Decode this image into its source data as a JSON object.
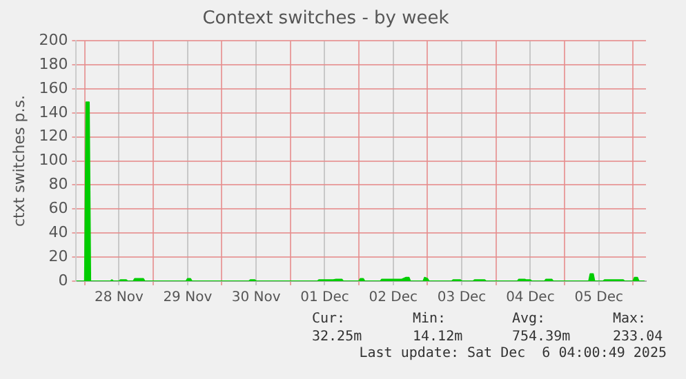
{
  "chart_data": {
    "type": "area",
    "title": "Context switches - by week",
    "ylabel": "ctxt switches p.s.",
    "x": [
      "2025-11-27T21:00",
      "2025-11-28T00:00",
      "2025-11-28T00:30",
      "2025-11-28T01:30",
      "2025-11-28T02:00",
      "2025-11-28T09:00",
      "2025-11-28T09:30",
      "2025-11-28T10:00",
      "2025-11-28T12:00",
      "2025-11-28T12:30",
      "2025-11-28T14:30",
      "2025-11-28T15:00",
      "2025-11-28T17:00",
      "2025-11-28T17:30",
      "2025-11-28T20:30",
      "2025-11-28T21:00",
      "2025-11-29T11:30",
      "2025-11-29T12:00",
      "2025-11-29T13:00",
      "2025-11-29T13:30",
      "2025-11-30T09:30",
      "2025-11-30T10:00",
      "2025-11-30T11:30",
      "2025-11-30T12:00",
      "2025-12-01T09:30",
      "2025-12-01T10:00",
      "2025-12-01T15:00",
      "2025-12-01T16:00",
      "2025-12-01T18:00",
      "2025-12-01T18:30",
      "2025-12-02T00:00",
      "2025-12-02T00:30",
      "2025-12-02T01:30",
      "2025-12-02T02:00",
      "2025-12-02T07:30",
      "2025-12-02T08:00",
      "2025-12-02T15:00",
      "2025-12-02T16:30",
      "2025-12-02T17:30",
      "2025-12-02T18:00",
      "2025-12-02T22:30",
      "2025-12-02T23:00",
      "2025-12-03T00:00",
      "2025-12-03T00:30",
      "2025-12-03T08:30",
      "2025-12-03T09:00",
      "2025-12-03T11:30",
      "2025-12-03T12:00",
      "2025-12-03T16:00",
      "2025-12-03T16:30",
      "2025-12-03T20:00",
      "2025-12-03T20:30",
      "2025-12-04T07:30",
      "2025-12-04T08:00",
      "2025-12-04T10:00",
      "2025-12-04T10:30",
      "2025-12-04T12:00",
      "2025-12-04T12:30",
      "2025-12-04T17:00",
      "2025-12-04T17:30",
      "2025-12-04T19:30",
      "2025-12-04T20:00",
      "2025-12-05T08:30",
      "2025-12-05T09:00",
      "2025-12-05T10:00",
      "2025-12-05T10:30",
      "2025-12-05T13:30",
      "2025-12-05T14:00",
      "2025-12-05T20:30",
      "2025-12-05T21:00",
      "2025-12-06T00:00",
      "2025-12-06T00:30",
      "2025-12-06T01:30",
      "2025-12-06T02:00",
      "2025-12-06T04:00"
    ],
    "series": [
      {
        "color": "#00cc00",
        "values": [
          0,
          0,
          149,
          149,
          0,
          0,
          1,
          0,
          0,
          1,
          1,
          0,
          0,
          2,
          2,
          0,
          0,
          2,
          2,
          0,
          0,
          1,
          1,
          0,
          0,
          1,
          1,
          1.5,
          1.5,
          0,
          0,
          2,
          2,
          0,
          0,
          1.5,
          1.5,
          3,
          3,
          0,
          0,
          3,
          2,
          0,
          0,
          1,
          1,
          0,
          0,
          1,
          1,
          0,
          0,
          1.5,
          1.5,
          1,
          1,
          0,
          0,
          1.5,
          1.5,
          0,
          0,
          6,
          6,
          0,
          0,
          1,
          1,
          0,
          0,
          3,
          3,
          0,
          0
        ]
      }
    ],
    "xlim": [
      "2025-11-27T21:00",
      "2025-12-06T04:30"
    ],
    "xticks": [
      {
        "value": "2025-11-28T00:00",
        "label": null
      },
      {
        "value": "2025-11-28T12:00",
        "label": "28 Nov"
      },
      {
        "value": "2025-11-29T00:00",
        "label": null
      },
      {
        "value": "2025-11-29T12:00",
        "label": "29 Nov"
      },
      {
        "value": "2025-11-30T00:00",
        "label": null
      },
      {
        "value": "2025-11-30T12:00",
        "label": "30 Nov"
      },
      {
        "value": "2025-12-01T00:00",
        "label": null
      },
      {
        "value": "2025-12-01T12:00",
        "label": "01 Dec"
      },
      {
        "value": "2025-12-02T00:00",
        "label": null
      },
      {
        "value": "2025-12-02T12:00",
        "label": "02 Dec"
      },
      {
        "value": "2025-12-03T00:00",
        "label": null
      },
      {
        "value": "2025-12-03T12:00",
        "label": "03 Dec"
      },
      {
        "value": "2025-12-04T00:00",
        "label": null
      },
      {
        "value": "2025-12-04T12:00",
        "label": "04 Dec"
      },
      {
        "value": "2025-12-05T00:00",
        "label": null
      },
      {
        "value": "2025-12-05T12:00",
        "label": "05 Dec"
      },
      {
        "value": "2025-12-06T00:00",
        "label": null
      }
    ],
    "ylim": [
      0,
      200
    ],
    "yticks": [
      0,
      20,
      40,
      60,
      80,
      100,
      120,
      140,
      160,
      180,
      200
    ],
    "grid": true,
    "annotations": [
      "Cur:",
      "Min:",
      "Avg:",
      "Max:",
      "32.25m",
      "14.12m",
      "754.39m",
      "233.04",
      "Last update: Sat Dec  6 04:00:49 2025"
    ]
  }
}
